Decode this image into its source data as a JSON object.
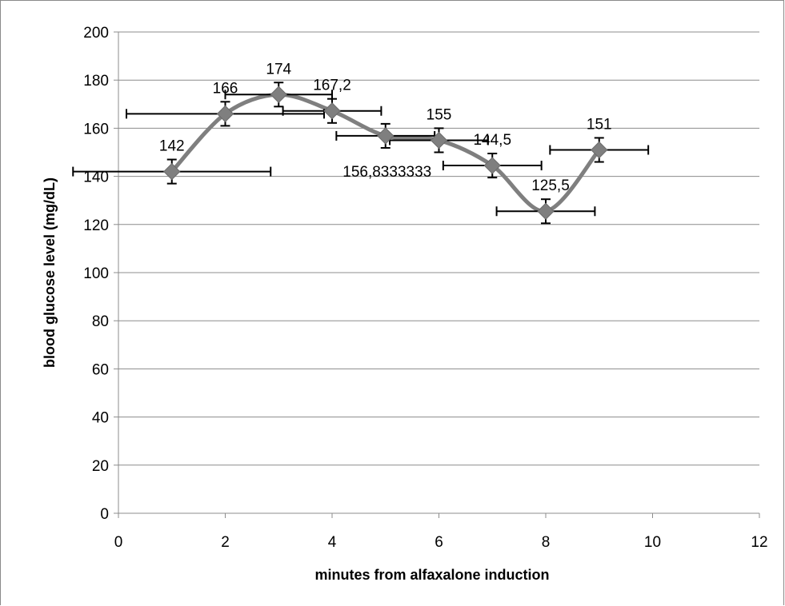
{
  "chart_data": {
    "type": "scatter",
    "title": "",
    "xlabel": "minutes from alfaxalone induction",
    "ylabel": "blood glucose level (mg/dL)",
    "xlim": [
      0,
      12
    ],
    "ylim": [
      0,
      200
    ],
    "xticks": [
      0,
      2,
      4,
      6,
      8,
      10,
      12
    ],
    "yticks": [
      0,
      20,
      40,
      60,
      80,
      100,
      120,
      140,
      160,
      180,
      200
    ],
    "grid": "horizontal",
    "smoothed_line": true,
    "marker": "diamond",
    "series_color": "#7f7f7f",
    "points": [
      {
        "x": 1,
        "y": 142,
        "label": "142",
        "xerr": 1.85,
        "yerr": 5
      },
      {
        "x": 2,
        "y": 166,
        "label": "166",
        "xerr": 1.85,
        "yerr": 5
      },
      {
        "x": 3,
        "y": 174,
        "label": "174",
        "xerr": 1.0,
        "yerr": 5
      },
      {
        "x": 4,
        "y": 167.2,
        "label": "167,2",
        "xerr": 0.92,
        "yerr": 5
      },
      {
        "x": 5,
        "y": 156.8333333,
        "label": "156,8333333",
        "xerr": 0.92,
        "yerr": 5
      },
      {
        "x": 6,
        "y": 155,
        "label": "155",
        "xerr": 0.92,
        "yerr": 5
      },
      {
        "x": 7,
        "y": 144.5,
        "label": "144,5",
        "xerr": 0.92,
        "yerr": 5
      },
      {
        "x": 8,
        "y": 125.5,
        "label": "125,5",
        "xerr": 0.92,
        "yerr": 5
      },
      {
        "x": 9,
        "y": 151,
        "label": "151",
        "xerr": 0.92,
        "yerr": 5
      }
    ]
  }
}
